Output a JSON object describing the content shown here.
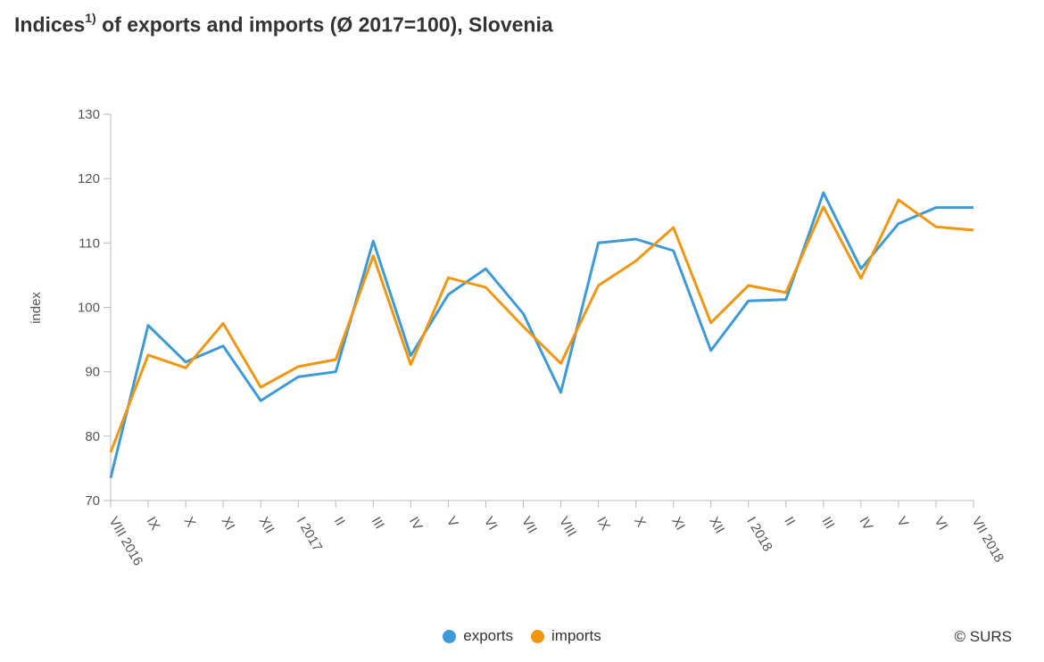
{
  "title": {
    "main": "Indices",
    "sup": "1)",
    "rest": " of exports and imports (Ø 2017=100), Slovenia"
  },
  "credit": "© SURS",
  "chart_data": {
    "type": "line",
    "title": "Indices1) of exports and imports (Ø 2017=100), Slovenia",
    "ylabel": "index",
    "xlabel": "",
    "ylim": [
      70,
      130
    ],
    "yticks": [
      70,
      80,
      90,
      100,
      110,
      120,
      130
    ],
    "grid": false,
    "legend_position": "bottom",
    "categories": [
      "VIII 2016",
      "IX",
      "X",
      "XI",
      "XII",
      "I 2017",
      "II",
      "III",
      "IV",
      "V",
      "VI",
      "VII",
      "VIII",
      "IX",
      "X",
      "XI",
      "XII",
      "I 2018",
      "II",
      "III",
      "IV",
      "V",
      "VI",
      "VII 2018"
    ],
    "series": [
      {
        "name": "exports",
        "color": "#3d9ad6",
        "values": [
          73.5,
          97.2,
          91.5,
          94.0,
          85.5,
          89.2,
          90.0,
          110.3,
          92.5,
          102.0,
          106.0,
          99.0,
          86.8,
          110.0,
          110.6,
          108.8,
          93.3,
          101.0,
          101.2,
          117.8,
          106.0,
          113.0,
          115.5,
          115.5
        ]
      },
      {
        "name": "imports",
        "color": "#f0960f",
        "values": [
          77.5,
          92.6,
          90.6,
          97.5,
          87.6,
          90.8,
          91.9,
          108.0,
          91.1,
          104.6,
          103.1,
          97.0,
          91.3,
          103.4,
          107.2,
          112.4,
          97.6,
          103.4,
          102.3,
          115.6,
          104.5,
          116.7,
          112.5,
          112.0
        ]
      }
    ]
  }
}
